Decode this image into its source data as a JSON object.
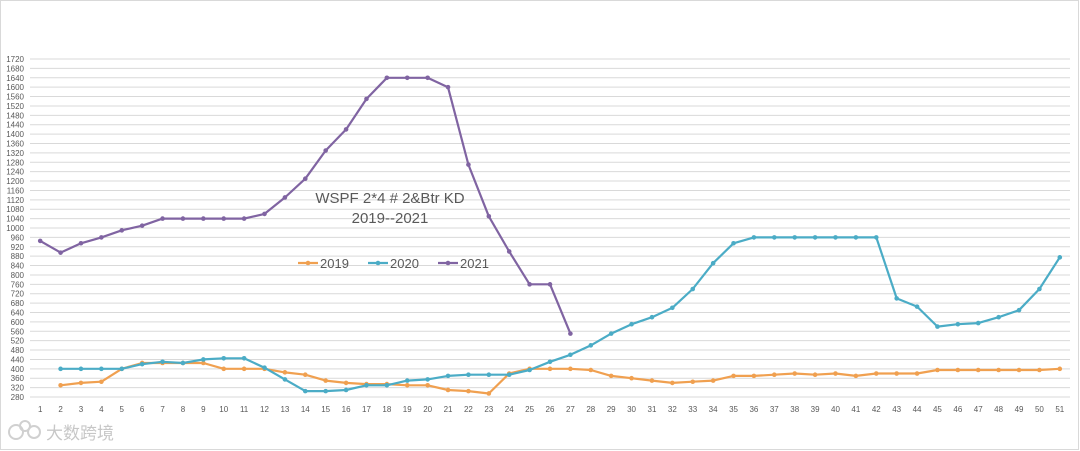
{
  "chart_data": {
    "type": "line",
    "title": "WSPF 2*4 # 2&Btr KD",
    "subtitle": "2019--2021",
    "xlabel": "",
    "ylabel": "",
    "ylim": [
      280,
      1720
    ],
    "ytick_step": 40,
    "x": [
      1,
      2,
      3,
      4,
      5,
      6,
      7,
      8,
      9,
      10,
      11,
      12,
      13,
      14,
      15,
      16,
      17,
      18,
      19,
      20,
      21,
      22,
      23,
      24,
      25,
      26,
      27,
      28,
      29,
      30,
      31,
      32,
      33,
      34,
      35,
      36,
      37,
      38,
      39,
      40,
      41,
      42,
      43,
      44,
      45,
      46,
      47,
      48,
      49,
      50,
      51
    ],
    "grid": true,
    "legend_position": "center-left",
    "series": [
      {
        "name": "2019",
        "color": "#f0a050",
        "values": [
          null,
          330,
          340,
          345,
          400,
          425,
          425,
          425,
          425,
          400,
          400,
          400,
          385,
          375,
          350,
          340,
          335,
          335,
          330,
          330,
          310,
          305,
          295,
          380,
          400,
          400,
          400,
          395,
          370,
          360,
          350,
          340,
          345,
          350,
          370,
          370,
          375,
          380,
          375,
          380,
          370,
          380,
          380,
          380,
          395,
          395,
          395,
          395,
          395,
          395,
          400
        ]
      },
      {
        "name": "2020",
        "color": "#4bacc6",
        "values": [
          null,
          400,
          400,
          400,
          400,
          420,
          430,
          425,
          440,
          445,
          445,
          405,
          355,
          305,
          305,
          310,
          330,
          330,
          350,
          355,
          370,
          375,
          375,
          375,
          395,
          430,
          460,
          500,
          550,
          590,
          620,
          660,
          740,
          850,
          935,
          960,
          960,
          960,
          960,
          960,
          960,
          960,
          700,
          665,
          580,
          590,
          595,
          620,
          650,
          740,
          875
        ]
      },
      {
        "name": "2021",
        "color": "#8064a2",
        "values": [
          945,
          895,
          935,
          960,
          990,
          1010,
          1040,
          1040,
          1040,
          1040,
          1040,
          1060,
          1130,
          1210,
          1330,
          1420,
          1550,
          1640,
          1640,
          1640,
          1600,
          1270,
          1050,
          900,
          760,
          760,
          550,
          null,
          null,
          null,
          null,
          null,
          null,
          null,
          null,
          null,
          null,
          null,
          null,
          null,
          null,
          null,
          null,
          null,
          null,
          null,
          null,
          null,
          null,
          null,
          null
        ]
      }
    ]
  },
  "watermark": {
    "text": "大数跨境",
    "icon": "brand-logo-icon"
  }
}
